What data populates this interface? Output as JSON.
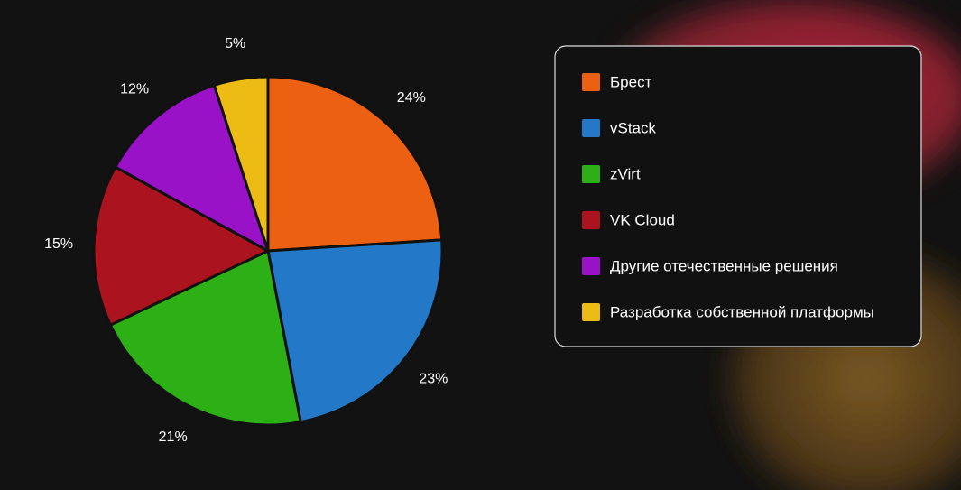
{
  "chart_data": {
    "type": "pie",
    "categories": [
      "Брест",
      "vStack",
      "zVirt",
      "VK Cloud",
      "Другие отечественные решения",
      "Разработка собственной платформы"
    ],
    "values": [
      24,
      23,
      21,
      15,
      12,
      5
    ],
    "value_labels": [
      "24%",
      "23%",
      "21%",
      "15%",
      "12%",
      "5%"
    ],
    "colors": [
      "#ec6012",
      "#2478c8",
      "#2db016",
      "#ab141e",
      "#9a12c8",
      "#ecbc14"
    ],
    "legend": "right"
  }
}
